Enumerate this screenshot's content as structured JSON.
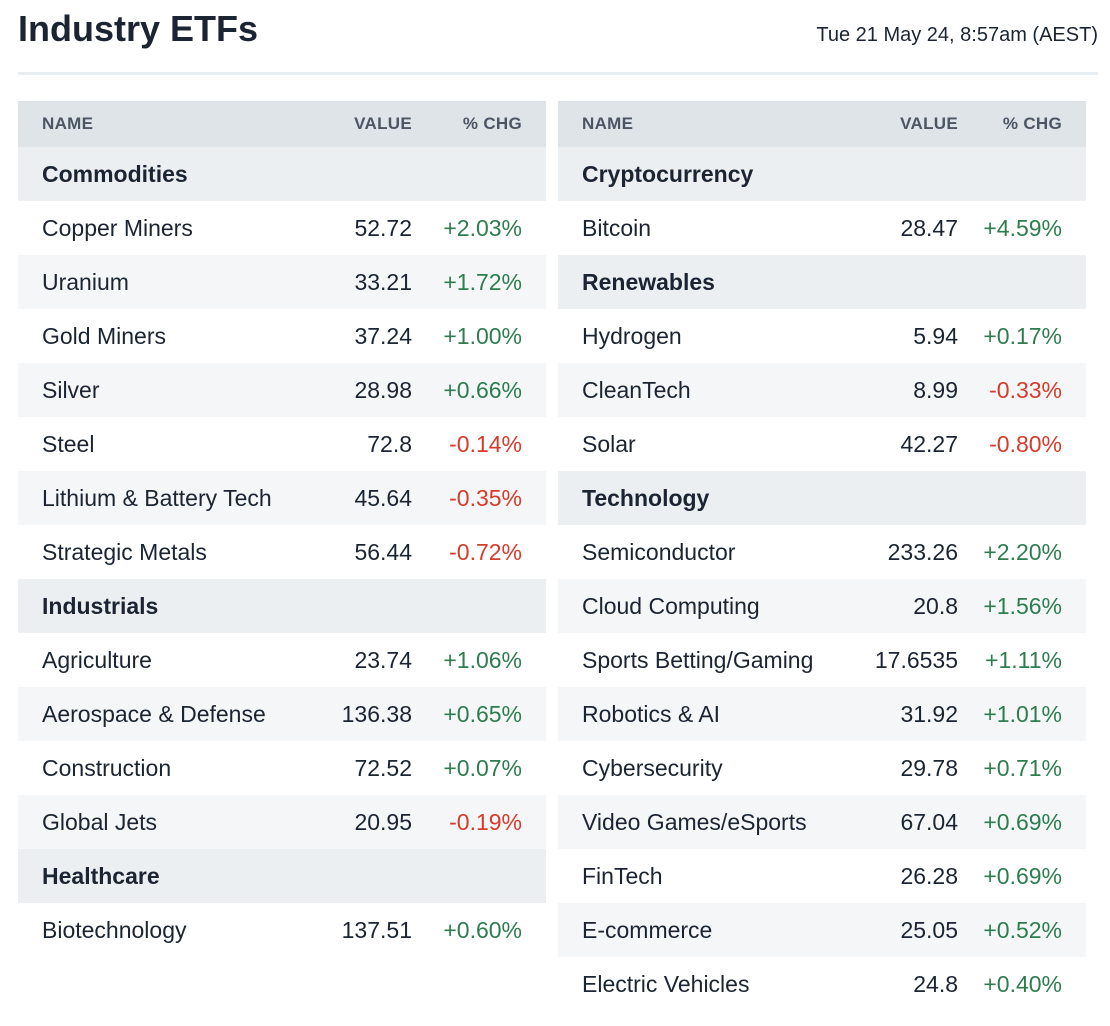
{
  "title": "Industry ETFs",
  "timestamp": "Tue 21 May 24, 8:57am (AEST)",
  "colors": {
    "up": "#2e7d4f",
    "down": "#d63b2b",
    "header_bg": "#dfe4e9",
    "section_bg": "#eceff2",
    "alt_bg": "#f4f6f8"
  },
  "columns": {
    "name": "NAME",
    "value": "VALUE",
    "chg": "% CHG"
  },
  "left_table": [
    {
      "kind": "section",
      "name": "Commodities"
    },
    {
      "kind": "item",
      "name": "Copper Miners",
      "value": "52.72",
      "chg": "+2.03%"
    },
    {
      "kind": "item",
      "name": "Uranium",
      "value": "33.21",
      "chg": "+1.72%"
    },
    {
      "kind": "item",
      "name": "Gold Miners",
      "value": "37.24",
      "chg": "+1.00%"
    },
    {
      "kind": "item",
      "name": "Silver",
      "value": "28.98",
      "chg": "+0.66%"
    },
    {
      "kind": "item",
      "name": "Steel",
      "value": "72.8",
      "chg": "-0.14%"
    },
    {
      "kind": "item",
      "name": "Lithium & Battery Tech",
      "value": "45.64",
      "chg": "-0.35%"
    },
    {
      "kind": "item",
      "name": "Strategic Metals",
      "value": "56.44",
      "chg": "-0.72%"
    },
    {
      "kind": "section",
      "name": "Industrials"
    },
    {
      "kind": "item",
      "name": "Agriculture",
      "value": "23.74",
      "chg": "+1.06%"
    },
    {
      "kind": "item",
      "name": "Aerospace & Defense",
      "value": "136.38",
      "chg": "+0.65%"
    },
    {
      "kind": "item",
      "name": "Construction",
      "value": "72.52",
      "chg": "+0.07%"
    },
    {
      "kind": "item",
      "name": "Global Jets",
      "value": "20.95",
      "chg": "-0.19%"
    },
    {
      "kind": "section",
      "name": "Healthcare"
    },
    {
      "kind": "item",
      "name": "Biotechnology",
      "value": "137.51",
      "chg": "+0.60%"
    }
  ],
  "right_table": [
    {
      "kind": "section",
      "name": "Cryptocurrency"
    },
    {
      "kind": "item",
      "name": "Bitcoin",
      "value": "28.47",
      "chg": "+4.59%"
    },
    {
      "kind": "section",
      "name": "Renewables"
    },
    {
      "kind": "item",
      "name": "Hydrogen",
      "value": "5.94",
      "chg": "+0.17%"
    },
    {
      "kind": "item",
      "name": "CleanTech",
      "value": "8.99",
      "chg": "-0.33%"
    },
    {
      "kind": "item",
      "name": "Solar",
      "value": "42.27",
      "chg": "-0.80%"
    },
    {
      "kind": "section",
      "name": "Technology"
    },
    {
      "kind": "item",
      "name": "Semiconductor",
      "value": "233.26",
      "chg": "+2.20%"
    },
    {
      "kind": "item",
      "name": "Cloud Computing",
      "value": "20.8",
      "chg": "+1.56%"
    },
    {
      "kind": "item",
      "name": "Sports Betting/Gaming",
      "value": "17.6535",
      "chg": "+1.11%"
    },
    {
      "kind": "item",
      "name": "Robotics & AI",
      "value": "31.92",
      "chg": "+1.01%"
    },
    {
      "kind": "item",
      "name": "Cybersecurity",
      "value": "29.78",
      "chg": "+0.71%"
    },
    {
      "kind": "item",
      "name": "Video Games/eSports",
      "value": "67.04",
      "chg": "+0.69%"
    },
    {
      "kind": "item",
      "name": "FinTech",
      "value": "26.28",
      "chg": "+0.69%"
    },
    {
      "kind": "item",
      "name": "E-commerce",
      "value": "25.05",
      "chg": "+0.52%"
    },
    {
      "kind": "item",
      "name": "Electric Vehicles",
      "value": "24.8",
      "chg": "+0.40%"
    }
  ]
}
